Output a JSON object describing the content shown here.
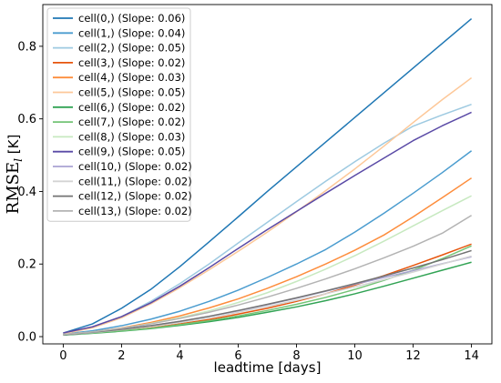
{
  "chart_data": {
    "type": "line",
    "title": "",
    "xlabel": "leadtime [days]",
    "ylabel_main": "RMSE",
    "ylabel_sub": "l",
    "ylabel_unit": " [K]",
    "xlim": [
      -0.7,
      14.7
    ],
    "ylim": [
      -0.02,
      0.915
    ],
    "xticks": [
      0,
      2,
      4,
      6,
      8,
      10,
      12,
      14
    ],
    "xtick_labels": [
      "0",
      "2",
      "4",
      "6",
      "8",
      "10",
      "12",
      "14"
    ],
    "yticks": [
      0.0,
      0.2,
      0.4,
      0.6,
      0.8
    ],
    "ytick_labels": [
      "0.0",
      "0.2",
      "0.4",
      "0.6",
      "0.8"
    ],
    "grid": false,
    "legend_position": "top-left",
    "x": [
      0,
      1,
      2,
      3,
      4,
      5,
      6,
      7,
      8,
      9,
      10,
      11,
      12,
      13,
      14
    ],
    "series": [
      {
        "name": "cell(0,) (Slope: 0.06)",
        "color": "#1f77b4",
        "values": [
          0.01,
          0.035,
          0.078,
          0.13,
          0.193,
          0.261,
          0.33,
          0.4,
          0.468,
          0.536,
          0.604,
          0.672,
          0.74,
          0.808,
          0.876
        ]
      },
      {
        "name": "cell(1,) (Slope: 0.04)",
        "color": "#4a9ccf",
        "values": [
          0.007,
          0.016,
          0.03,
          0.048,
          0.07,
          0.097,
          0.128,
          0.163,
          0.2,
          0.24,
          0.288,
          0.34,
          0.395,
          0.452,
          0.512
        ]
      },
      {
        "name": "cell(2,) (Slope: 0.05)",
        "color": "#9ecae1",
        "values": [
          0.008,
          0.025,
          0.055,
          0.097,
          0.146,
          0.2,
          0.258,
          0.315,
          0.372,
          0.428,
          0.482,
          0.533,
          0.58,
          0.611,
          0.64
        ]
      },
      {
        "name": "cell(3,) (Slope: 0.02)",
        "color": "#e6550d",
        "values": [
          0.005,
          0.01,
          0.016,
          0.024,
          0.035,
          0.047,
          0.062,
          0.078,
          0.097,
          0.118,
          0.142,
          0.168,
          0.196,
          0.225,
          0.255
        ]
      },
      {
        "name": "cell(4,) (Slope: 0.03)",
        "color": "#fd8d3c",
        "values": [
          0.006,
          0.013,
          0.024,
          0.039,
          0.057,
          0.079,
          0.104,
          0.133,
          0.165,
          0.2,
          0.238,
          0.28,
          0.33,
          0.383,
          0.437
        ]
      },
      {
        "name": "cell(5,) (Slope: 0.05)",
        "color": "#fdc899",
        "values": [
          0.008,
          0.024,
          0.052,
          0.09,
          0.135,
          0.184,
          0.235,
          0.288,
          0.344,
          0.402,
          0.462,
          0.525,
          0.59,
          0.653,
          0.713
        ]
      },
      {
        "name": "cell(6,) (Slope: 0.02)",
        "color": "#31a354",
        "values": [
          0.004,
          0.009,
          0.015,
          0.022,
          0.031,
          0.041,
          0.053,
          0.067,
          0.082,
          0.099,
          0.118,
          0.139,
          0.161,
          0.183,
          0.205
        ]
      },
      {
        "name": "cell(7,) (Slope: 0.02)",
        "color": "#74c476",
        "values": [
          0.005,
          0.01,
          0.016,
          0.023,
          0.033,
          0.044,
          0.057,
          0.072,
          0.089,
          0.108,
          0.13,
          0.155,
          0.183,
          0.215,
          0.25
        ]
      },
      {
        "name": "cell(8,) (Slope: 0.03)",
        "color": "#c7e9c0",
        "values": [
          0.006,
          0.013,
          0.023,
          0.036,
          0.052,
          0.071,
          0.094,
          0.121,
          0.152,
          0.186,
          0.223,
          0.263,
          0.305,
          0.347,
          0.388
        ]
      },
      {
        "name": "cell(9,) (Slope: 0.05)",
        "color": "#5a4aa6",
        "values": [
          0.01,
          0.027,
          0.055,
          0.093,
          0.139,
          0.19,
          0.243,
          0.295,
          0.345,
          0.395,
          0.444,
          0.492,
          0.54,
          0.581,
          0.618
        ]
      },
      {
        "name": "cell(10,) (Slope: 0.02)",
        "color": "#a9a3d2",
        "values": [
          0.005,
          0.012,
          0.02,
          0.03,
          0.042,
          0.056,
          0.071,
          0.088,
          0.106,
          0.125,
          0.144,
          0.163,
          0.182,
          0.201,
          0.22
        ]
      },
      {
        "name": "cell(11,) (Slope: 0.02)",
        "color": "#d3d3d3",
        "values": [
          0.005,
          0.011,
          0.019,
          0.028,
          0.039,
          0.052,
          0.067,
          0.083,
          0.1,
          0.118,
          0.137,
          0.157,
          0.178,
          0.2,
          0.222
        ]
      },
      {
        "name": "cell(12,) (Slope: 0.02)",
        "color": "#737373",
        "values": [
          0.005,
          0.012,
          0.02,
          0.03,
          0.042,
          0.056,
          0.072,
          0.089,
          0.107,
          0.126,
          0.146,
          0.167,
          0.189,
          0.212,
          0.237
        ]
      },
      {
        "name": "cell(13,) (Slope: 0.02)",
        "color": "#b3b3b3",
        "values": [
          0.006,
          0.013,
          0.023,
          0.035,
          0.05,
          0.067,
          0.087,
          0.109,
          0.133,
          0.159,
          0.187,
          0.217,
          0.249,
          0.285,
          0.334
        ]
      }
    ]
  }
}
